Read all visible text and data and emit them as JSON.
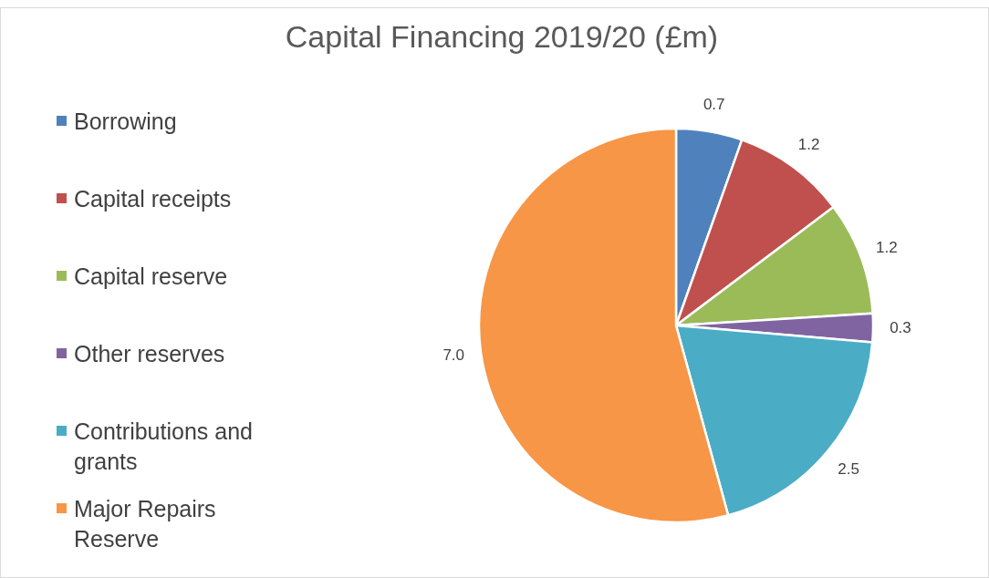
{
  "chart_data": {
    "type": "pie",
    "title": "Capital Financing 2019/20 (£m)",
    "categories": [
      "Borrowing",
      "Capital receipts",
      "Capital reserve",
      "Other reserves",
      "Contributions and grants",
      "Major Repairs Reserve"
    ],
    "values": [
      0.7,
      1.2,
      1.2,
      0.3,
      2.5,
      7.0
    ],
    "value_labels": [
      "0.7",
      "1.2",
      "1.2",
      "0.3",
      "2.5",
      "7.0"
    ],
    "colors": [
      "#4f81bd",
      "#c0504d",
      "#9bbb59",
      "#8064a2",
      "#4bacc6",
      "#f79646"
    ],
    "legend": "left"
  }
}
